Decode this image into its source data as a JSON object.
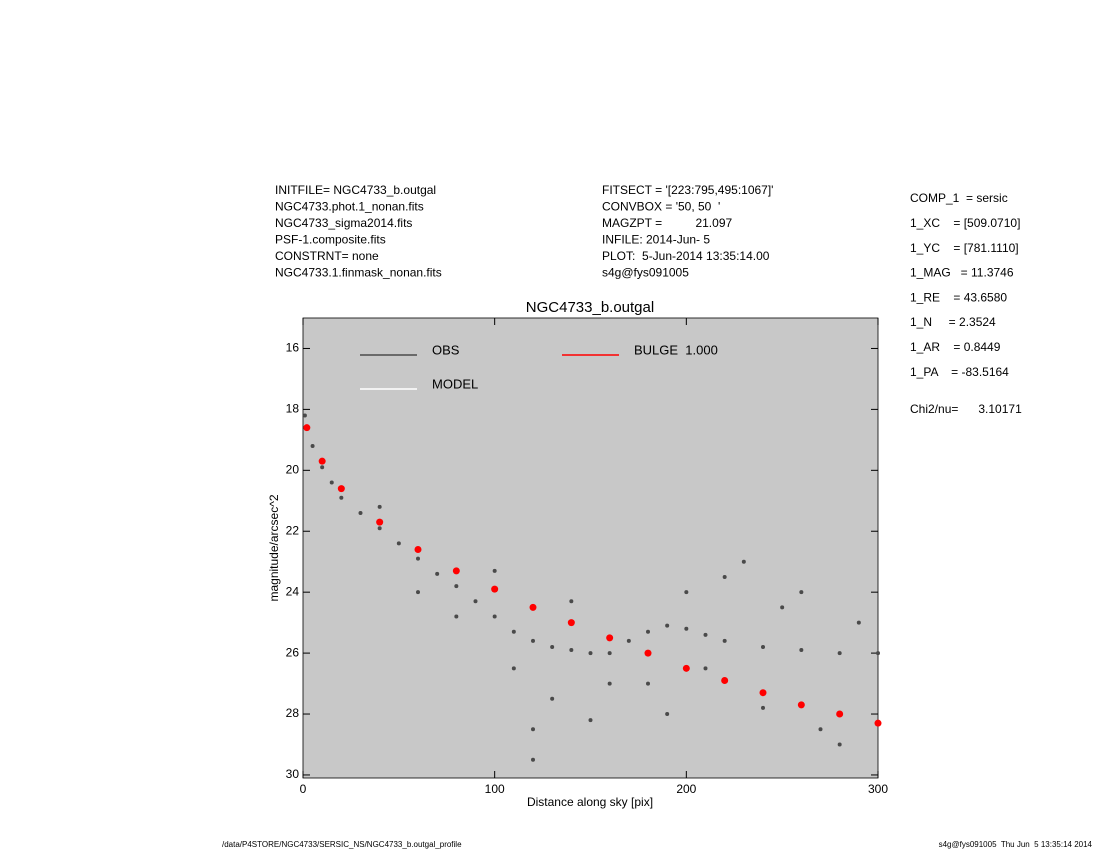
{
  "header": {
    "left": [
      "INITFILE= NGC4733_b.outgal",
      "NGC4733.phot.1_nonan.fits",
      "NGC4733_sigma2014.fits",
      "PSF-1.composite.fits",
      "CONSTRNT= none",
      "NGC4733.1.finmask_nonan.fits"
    ],
    "middle": [
      "FITSECT = '[223:795,495:1067]'",
      "CONVBOX = '50, 50  '",
      "MAGZPT =          21.097",
      "INFILE: 2014-Jun- 5",
      "PLOT:  5-Jun-2014 13:35:14.00",
      "s4g@fys091005"
    ],
    "right": [
      "COMP_1  = sersic",
      "1_XC    = [509.0710]",
      "1_YC    = [781.1110]",
      "1_MAG   = 11.3746",
      "1_RE    = 43.6580",
      "1_N     = 2.3524",
      "1_AR    = 0.8449",
      "1_PA    = -83.5164"
    ],
    "chi": "Chi2/nu=      3.10171"
  },
  "chart_data": {
    "type": "scatter",
    "title": "NGC4733_b.outgal",
    "xlabel": "Distance along sky [pix]",
    "ylabel": "magnitude/arcsec^2",
    "xlim": [
      0,
      300
    ],
    "ylim": [
      15,
      30.1
    ],
    "y_inverted": true,
    "xticks": [
      0,
      100,
      200,
      300
    ],
    "yticks": [
      16,
      18,
      20,
      22,
      24,
      26,
      28,
      30
    ],
    "background": "#c8c8c8",
    "series": [
      {
        "name": "OBS",
        "color": "#4a4a4a",
        "x": [
          1,
          5,
          10,
          15,
          20,
          30,
          40,
          50,
          60,
          70,
          80,
          90,
          100,
          110,
          120,
          130,
          140,
          150,
          160,
          170,
          180,
          190,
          200,
          210,
          220,
          240,
          260,
          280,
          300,
          120,
          130,
          150,
          180,
          200,
          220,
          230,
          250,
          270,
          110,
          140,
          160,
          190,
          210,
          240,
          260,
          290,
          100,
          80,
          60,
          40,
          120,
          280
        ],
        "y": [
          18.2,
          19.2,
          19.9,
          20.4,
          20.9,
          21.4,
          21.9,
          22.4,
          22.9,
          23.4,
          23.8,
          24.3,
          24.8,
          25.3,
          25.6,
          25.8,
          25.9,
          26.0,
          26.0,
          25.6,
          25.3,
          25.1,
          25.2,
          25.4,
          25.6,
          25.8,
          25.9,
          26.0,
          26.0,
          28.5,
          27.5,
          28.2,
          27.0,
          24.0,
          23.5,
          23.0,
          24.5,
          28.5,
          26.5,
          24.3,
          27.0,
          28.0,
          26.5,
          27.8,
          24.0,
          25.0,
          23.3,
          24.8,
          24.0,
          21.2,
          29.5,
          29.0
        ]
      },
      {
        "name": "MODEL",
        "color": "#ffffff",
        "x": [],
        "y": []
      },
      {
        "name": "BULGE  1.000",
        "color": "#ff0000",
        "x": [
          2,
          10,
          20,
          40,
          60,
          80,
          100,
          120,
          140,
          160,
          180,
          200,
          220,
          240,
          260,
          280,
          300
        ],
        "y": [
          18.6,
          19.7,
          20.6,
          21.7,
          22.6,
          23.3,
          23.9,
          24.5,
          25.0,
          25.5,
          26.0,
          26.5,
          26.9,
          27.3,
          27.7,
          28.0,
          28.3
        ]
      }
    ]
  },
  "footer": {
    "left": "/data/P4STORE/NGC4733/SERSIC_NS/NGC4733_b.outgal_profile",
    "right": "s4g@fys091005  Thu Jun  5 13:35:14 2014"
  }
}
